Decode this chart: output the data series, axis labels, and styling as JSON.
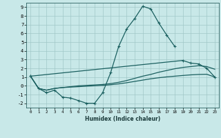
{
  "xlabel": "Humidex (Indice chaleur)",
  "background_color": "#c8e8e8",
  "grid_color": "#a0c8c8",
  "line_color": "#1a5f5f",
  "xlim": [
    -0.5,
    23.5
  ],
  "ylim": [
    -2.5,
    9.5
  ],
  "xticks": [
    0,
    1,
    2,
    3,
    4,
    5,
    6,
    7,
    8,
    9,
    10,
    11,
    12,
    13,
    14,
    15,
    16,
    17,
    18,
    19,
    20,
    21,
    22,
    23
  ],
  "yticks": [
    -2,
    -1,
    0,
    1,
    2,
    3,
    4,
    5,
    6,
    7,
    8,
    9
  ],
  "curve_main_x": [
    0,
    1,
    2,
    3,
    4,
    5,
    6,
    7,
    8,
    9,
    10,
    11,
    12,
    13,
    14,
    15,
    16,
    17,
    18
  ],
  "curve_main_y": [
    1.1,
    -0.3,
    -0.8,
    -0.5,
    -1.3,
    -1.4,
    -1.7,
    -2.0,
    -2.0,
    -0.8,
    1.5,
    4.5,
    6.5,
    7.7,
    9.1,
    8.8,
    7.2,
    5.8,
    4.5
  ],
  "curve_high_x": [
    0,
    19,
    20,
    21,
    22,
    23
  ],
  "curve_high_y": [
    1.1,
    2.9,
    2.6,
    2.5,
    2.0,
    1.0
  ],
  "curve_mid_x": [
    0,
    1,
    2,
    3,
    4,
    5,
    6,
    7,
    8,
    9,
    10,
    11,
    12,
    13,
    14,
    15,
    16,
    17,
    18,
    19,
    20,
    21,
    22,
    23
  ],
  "curve_mid_y": [
    1.1,
    -0.3,
    -0.5,
    -0.3,
    -0.2,
    -0.1,
    0.0,
    0.05,
    0.1,
    0.15,
    0.25,
    0.4,
    0.6,
    0.85,
    1.1,
    1.3,
    1.55,
    1.75,
    1.95,
    2.1,
    2.2,
    2.3,
    2.2,
    1.9
  ],
  "curve_low_x": [
    0,
    1,
    2,
    3,
    4,
    5,
    6,
    7,
    8,
    9,
    10,
    11,
    12,
    13,
    14,
    15,
    16,
    17,
    18,
    19,
    20,
    21,
    22,
    23
  ],
  "curve_low_y": [
    1.1,
    -0.3,
    -0.5,
    -0.3,
    -0.2,
    -0.15,
    -0.1,
    -0.05,
    0.0,
    0.05,
    0.12,
    0.22,
    0.35,
    0.5,
    0.65,
    0.8,
    0.92,
    1.02,
    1.1,
    1.18,
    1.25,
    1.3,
    1.32,
    1.0
  ]
}
